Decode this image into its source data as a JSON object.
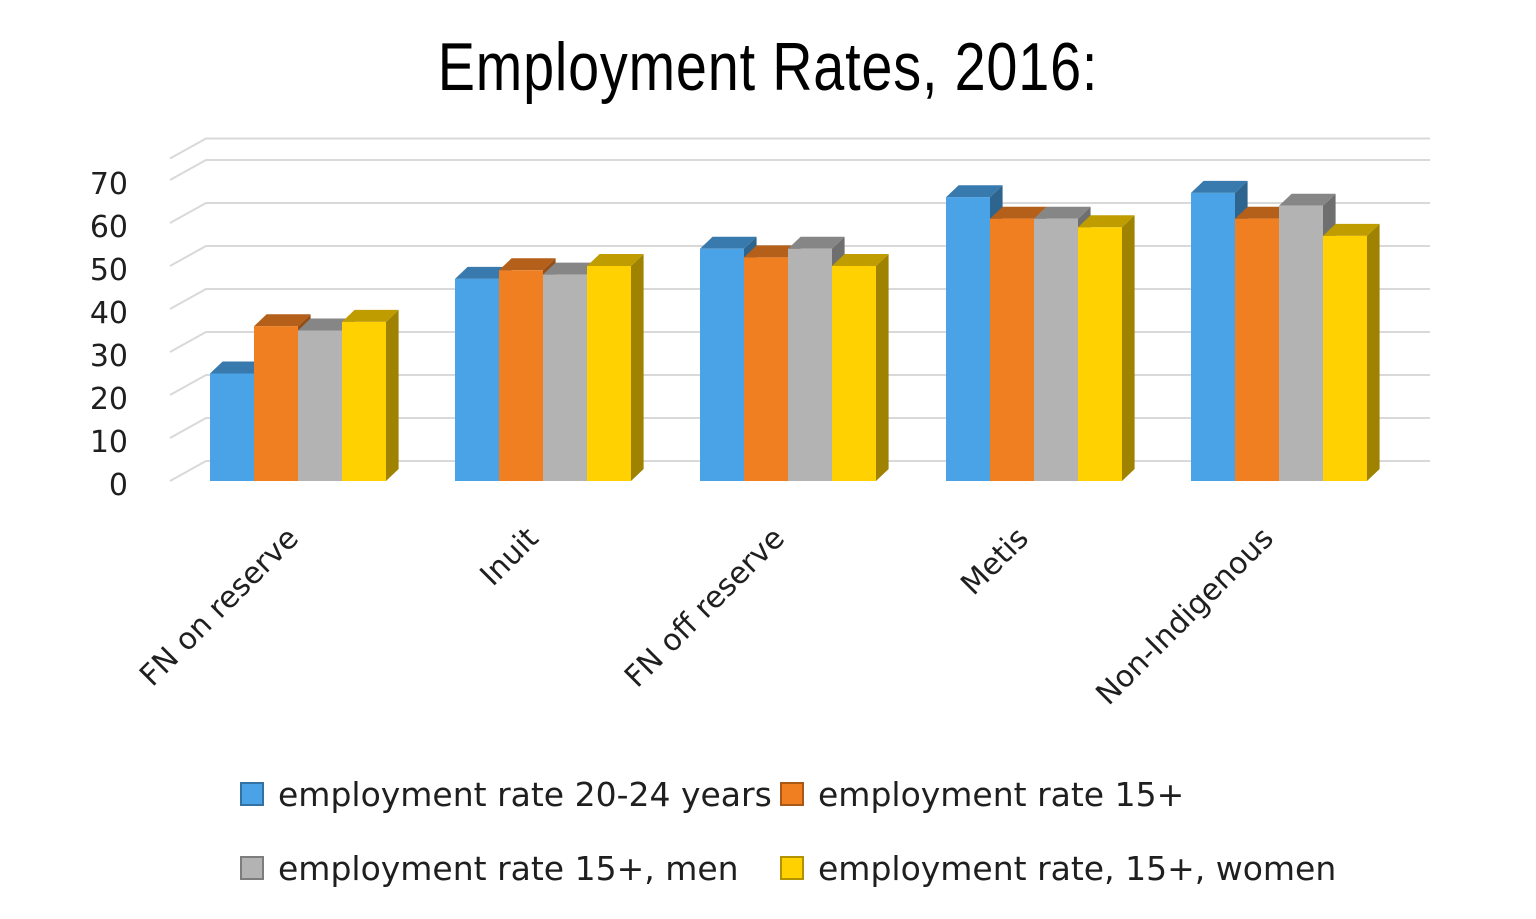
{
  "chart_data": {
    "type": "bar",
    "title": "Employment Rates, 2016:",
    "categories": [
      "FN on reserve",
      "Inuit",
      "FN off reserve",
      "Metis",
      "Non-Indigenous"
    ],
    "series": [
      {
        "name": "employment rate 20-24 years",
        "color": "#4aa3e6",
        "values": [
          25,
          47,
          54,
          66,
          67
        ]
      },
      {
        "name": "employment rate 15+",
        "color": "#f07f22",
        "values": [
          36,
          49,
          52,
          61,
          61
        ]
      },
      {
        "name": "employment rate 15+, men",
        "color": "#b3b3b3",
        "values": [
          35,
          48,
          54,
          61,
          64
        ]
      },
      {
        "name": "employment rate, 15+, women",
        "color": "#ffd100",
        "values": [
          37,
          50,
          50,
          59,
          57
        ]
      }
    ],
    "y_ticks": [
      "0",
      "10",
      "20",
      "30",
      "40",
      "50",
      "60",
      "70"
    ],
    "ylim": [
      0,
      75
    ],
    "xlabel": "",
    "ylabel": "",
    "grid": true,
    "legend_position": "bottom"
  }
}
